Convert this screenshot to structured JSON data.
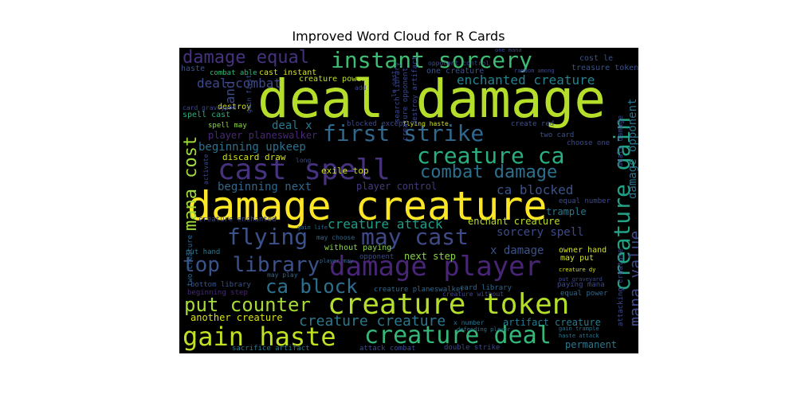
{
  "chart_data": {
    "type": "wordcloud",
    "title": "Improved Word Cloud for R Cards",
    "background": "#000000",
    "colormap": "viridis",
    "words": [
      {
        "text": "deal damage",
        "color": "#b5de2b",
        "weight": 1.0
      },
      {
        "text": "damage creature",
        "color": "#fde725",
        "weight": 0.92
      },
      {
        "text": "cast spell",
        "color": "#46327e",
        "weight": 0.78
      },
      {
        "text": "creature token",
        "color": "#b5de2b",
        "weight": 0.72
      },
      {
        "text": "damage player",
        "color": "#482576",
        "weight": 0.68
      },
      {
        "text": "gain haste",
        "color": "#c2df23",
        "weight": 0.64
      },
      {
        "text": "creature deal",
        "color": "#35b779",
        "weight": 0.6
      },
      {
        "text": "instant sorcery",
        "color": "#3fbc73",
        "weight": 0.58
      },
      {
        "text": "first strike",
        "color": "#31688e",
        "weight": 0.55
      },
      {
        "text": "creature ca",
        "color": "#2ab07f",
        "weight": 0.55
      },
      {
        "text": "flying",
        "color": "#3b528b",
        "weight": 0.52
      },
      {
        "text": "may cast",
        "color": "#3e4a89",
        "weight": 0.5
      },
      {
        "text": "creature gain",
        "color": "#20a386",
        "weight": 0.5
      },
      {
        "text": "top library",
        "color": "#3b528b",
        "weight": 0.48
      },
      {
        "text": "put counter",
        "color": "#a5db36",
        "weight": 0.46
      },
      {
        "text": "ca block",
        "color": "#2d708e",
        "weight": 0.45
      },
      {
        "text": "combat damage",
        "color": "#2d708e",
        "weight": 0.42
      },
      {
        "text": "damage equal",
        "color": "#46327e",
        "weight": 0.4
      },
      {
        "text": "mana cost",
        "color": "#a0da39",
        "weight": 0.4
      },
      {
        "text": "mana value",
        "color": "#3e4a89",
        "weight": 0.38
      },
      {
        "text": "creature creature",
        "color": "#2a788e",
        "weight": 0.34
      },
      {
        "text": "enchanted creature",
        "color": "#26828e",
        "weight": 0.3
      },
      {
        "text": "creature attack",
        "color": "#1f9e89",
        "weight": 0.28
      },
      {
        "text": "damage opponent",
        "color": "#2c728e",
        "weight": 0.28
      },
      {
        "text": "ca blocked",
        "color": "#3b528b",
        "weight": 0.26
      },
      {
        "text": "deal combat",
        "color": "#3e4a89",
        "weight": 0.25
      },
      {
        "text": "deal x",
        "color": "#2a788e",
        "weight": 0.24
      },
      {
        "text": "sorcery spell",
        "color": "#3e4a89",
        "weight": 0.24
      },
      {
        "text": "beginning upkeep",
        "color": "#2d708e",
        "weight": 0.22
      },
      {
        "text": "player planeswalker",
        "color": "#482878",
        "weight": 0.22
      },
      {
        "text": "beginning next",
        "color": "#30678d",
        "weight": 0.22
      },
      {
        "text": "player control",
        "color": "#443a83",
        "weight": 0.22
      },
      {
        "text": "land",
        "color": "#3e4a89",
        "weight": 0.22
      },
      {
        "text": "artifact creature",
        "color": "#2a788e",
        "weight": 0.22
      },
      {
        "text": "x damage",
        "color": "#3b528b",
        "weight": 0.22
      },
      {
        "text": "another creature",
        "color": "#d8e219",
        "weight": 0.2
      },
      {
        "text": "enchant creature",
        "color": "#bddf26",
        "weight": 0.18
      },
      {
        "text": "next step",
        "color": "#8bd646",
        "weight": 0.18
      },
      {
        "text": "trample",
        "color": "#2a788e",
        "weight": 0.18
      },
      {
        "text": "discard draw",
        "color": "#d2e21b",
        "weight": 0.18
      },
      {
        "text": "permanent",
        "color": "#2a788e",
        "weight": 0.18
      },
      {
        "text": "exile top",
        "color": "#d2e21b",
        "weight": 0.16
      },
      {
        "text": "creature power",
        "color": "#bddf26",
        "weight": 0.16
      },
      {
        "text": "cast instant",
        "color": "#d2e21b",
        "weight": 0.16
      },
      {
        "text": "one creature",
        "color": "#3b528b",
        "weight": 0.16
      },
      {
        "text": "treasure token",
        "color": "#3b528b",
        "weight": 0.16
      },
      {
        "text": "cost le",
        "color": "#3b528b",
        "weight": 0.16
      },
      {
        "text": "combat able",
        "color": "#35b779",
        "weight": 0.16
      },
      {
        "text": "haste",
        "color": "#3b528b",
        "weight": 0.16
      },
      {
        "text": "destroy",
        "color": "#d2e21b",
        "weight": 0.16
      },
      {
        "text": "spell cast",
        "color": "#29af7f",
        "weight": 0.16
      },
      {
        "text": "spell may",
        "color": "#8bd646",
        "weight": 0.16
      },
      {
        "text": "without paying",
        "color": "#8bd646",
        "weight": 0.16
      },
      {
        "text": "may put",
        "color": "#d2e21b",
        "weight": 0.16
      },
      {
        "text": "owner hand",
        "color": "#d2e21b",
        "weight": 0.16
      },
      {
        "text": "put hand",
        "color": "#2a788e",
        "weight": 0.16
      },
      {
        "text": "bottom library",
        "color": "#3b528b",
        "weight": 0.16
      },
      {
        "text": "sacrifice artifact",
        "color": "#2a788e",
        "weight": 0.16
      },
      {
        "text": "attack combat",
        "color": "#3e4a89",
        "weight": 0.14
      },
      {
        "text": "double strike",
        "color": "#3e4a89",
        "weight": 0.14
      },
      {
        "text": "create red",
        "color": "#3b528b",
        "weight": 0.14
      },
      {
        "text": "two card",
        "color": "#3b528b",
        "weight": 0.14
      },
      {
        "text": "choose one",
        "color": "#3e4a89",
        "weight": 0.14
      },
      {
        "text": "equal number",
        "color": "#3e4a89",
        "weight": 0.14
      },
      {
        "text": "creature enchanted",
        "color": "#3e4a89",
        "weight": 0.14
      },
      {
        "text": "creature planeswalker",
        "color": "#30678d",
        "weight": 0.14
      },
      {
        "text": "card library",
        "color": "#30678d",
        "weight": 0.14
      },
      {
        "text": "paying mana",
        "color": "#3e4a89",
        "weight": 0.14
      },
      {
        "text": "equal power",
        "color": "#30678d",
        "weight": 0.14
      },
      {
        "text": "x number",
        "color": "#2c728e",
        "weight": 0.14
      },
      {
        "text": "defending player",
        "color": "#2c728e",
        "weight": 0.12
      },
      {
        "text": "gain trample",
        "color": "#2c728e",
        "weight": 0.12
      },
      {
        "text": "haste attack",
        "color": "#2c728e",
        "weight": 0.12
      },
      {
        "text": "attacking creature",
        "color": "#3e4a89",
        "weight": 0.14
      },
      {
        "text": "dealt damage",
        "color": "#3e4a89",
        "weight": 0.14
      },
      {
        "text": "opponent",
        "color": "#3e4a89",
        "weight": 0.14
      },
      {
        "text": "may play",
        "color": "#30678d",
        "weight": 0.12
      },
      {
        "text": "may choose",
        "color": "#30678d",
        "weight": 0.12
      },
      {
        "text": "player may",
        "color": "#30678d",
        "weight": 0.12
      },
      {
        "text": "gain life",
        "color": "#30678d",
        "weight": 0.1
      },
      {
        "text": "two creature",
        "color": "#30678d",
        "weight": 0.12
      },
      {
        "text": "beginning step",
        "color": "#482878",
        "weight": 0.12
      },
      {
        "text": "creature dy",
        "color": "#d2e21b",
        "weight": 0.1
      },
      {
        "text": "put graveyard",
        "color": "#3e4a89",
        "weight": 0.1
      },
      {
        "text": "blocked except",
        "color": "#3e4a89",
        "weight": 0.12
      },
      {
        "text": "flying haste",
        "color": "#d2e21b",
        "weight": 0.1
      },
      {
        "text": "search library",
        "color": "#3e4a89",
        "weight": 0.12
      },
      {
        "text": "destroy artifact",
        "color": "#3e4a89",
        "weight": 0.12
      },
      {
        "text": "creature opponent",
        "color": "#3e4a89",
        "weight": 0.12
      },
      {
        "text": "le cast",
        "color": "#3e4a89",
        "weight": 0.12
      },
      {
        "text": "gain first",
        "color": "#3e4a89",
        "weight": 0.12
      },
      {
        "text": "activate",
        "color": "#3e4a89",
        "weight": 0.1
      },
      {
        "text": "long",
        "color": "#3e4a89",
        "weight": 0.1
      },
      {
        "text": "add",
        "color": "#3e4a89",
        "weight": 0.1
      },
      {
        "text": "card graveyard",
        "color": "#3e4a89",
        "weight": 0.1
      },
      {
        "text": "opponent control",
        "color": "#3e4a89",
        "weight": 0.1
      },
      {
        "text": "random among",
        "color": "#3e4a89",
        "weight": 0.1
      },
      {
        "text": "one mana",
        "color": "#3e4a89",
        "weight": 0.1
      },
      {
        "text": "creature without",
        "color": "#3e4a89",
        "weight": 0.1
      }
    ]
  }
}
